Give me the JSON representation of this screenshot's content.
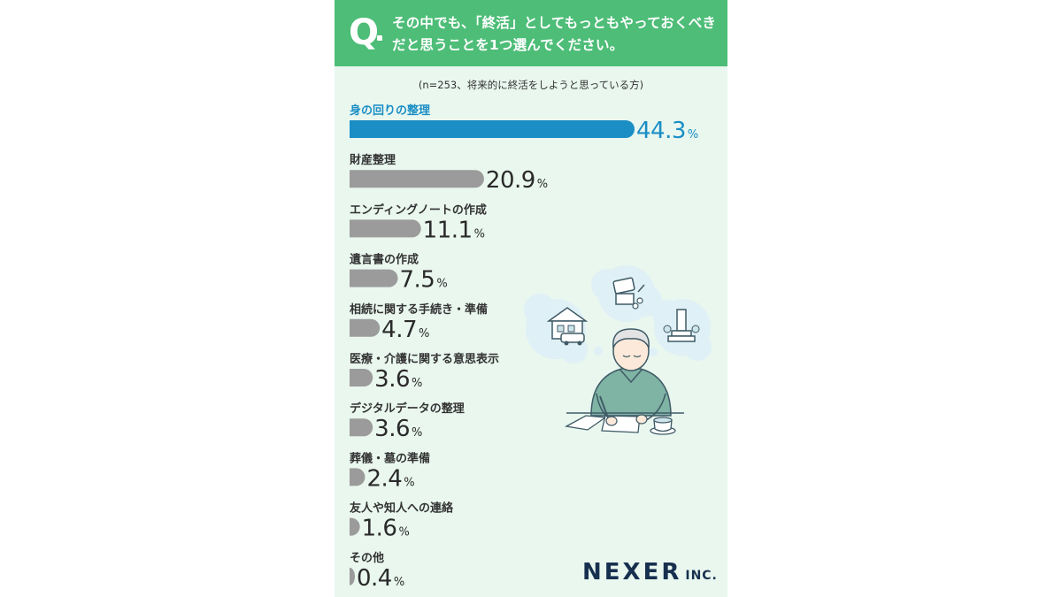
{
  "header": {
    "q_mark": "Q",
    "question_line1": "その中でも、「終活」としてもっともやっておくべき",
    "question_line2": "だと思うことを1つ選んでください。"
  },
  "note": "(n=253、将来的に終活をしようと思っている方)",
  "brand": {
    "name": "NEXER",
    "suffix": "INC."
  },
  "colors": {
    "header": "#4dbd77",
    "background": "#e9f7ef",
    "highlight": "#1b8ec5",
    "bar": "#9b9b9b"
  },
  "chart_data": {
    "type": "bar",
    "orientation": "horizontal",
    "unit": "%",
    "categories": [
      "身の回りの整理",
      "財産整理",
      "エンディングノートの作成",
      "遺言書の作成",
      "相続に関する手続き・準備",
      "医療・介護に関する意思表示",
      "デジタルデータの整理",
      "葬儀・墓の準備",
      "友人や知人への連絡",
      "その他"
    ],
    "values": [
      44.3,
      20.9,
      11.1,
      7.5,
      4.7,
      3.6,
      3.6,
      2.4,
      1.6,
      0.4
    ],
    "highlight_index": 0
  }
}
